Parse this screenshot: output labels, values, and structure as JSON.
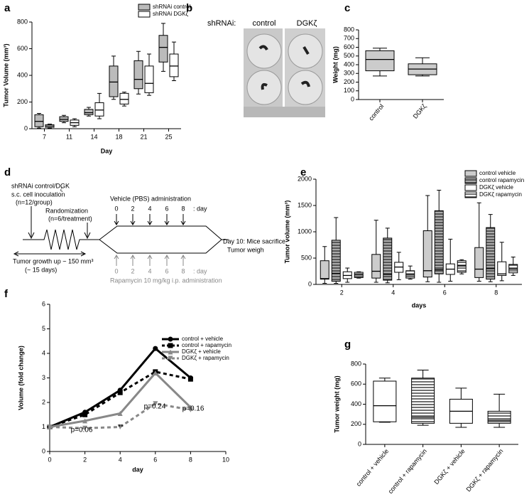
{
  "chart_data": [
    {
      "panel": "a",
      "type": "box",
      "ylabel": "Tumor Volume (mm³)",
      "xlabel": "Day",
      "categories": [
        "7",
        "11",
        "14",
        "18",
        "21",
        "25"
      ],
      "ylim": [
        0,
        800
      ],
      "yticks": [
        0,
        200,
        400,
        600,
        800
      ],
      "legend": "top-right",
      "series": [
        {
          "name": "shRNAi control",
          "color": "#bbbbbb",
          "values": [
            {
              "min": 5,
              "q1": 15,
              "median": 55,
              "q3": 105,
              "max": 115
            },
            {
              "min": 45,
              "q1": 55,
              "median": 70,
              "q3": 90,
              "max": 100
            },
            {
              "min": 95,
              "q1": 105,
              "median": 120,
              "q3": 145,
              "max": 160
            },
            {
              "min": 220,
              "q1": 240,
              "median": 350,
              "q3": 470,
              "max": 545
            },
            {
              "min": 260,
              "q1": 300,
              "median": 370,
              "q3": 510,
              "max": 580
            },
            {
              "min": 430,
              "q1": 500,
              "median": 610,
              "q3": 700,
              "max": 790
            }
          ]
        },
        {
          "name": "shRNAi DGKζ",
          "color": "#ffffff",
          "values": [
            {
              "min": 5,
              "q1": 10,
              "median": 20,
              "q3": 30,
              "max": 35
            },
            {
              "min": 15,
              "q1": 25,
              "median": 45,
              "q3": 65,
              "max": 75
            },
            {
              "min": 75,
              "q1": 95,
              "median": 140,
              "q3": 195,
              "max": 265
            },
            {
              "min": 170,
              "q1": 185,
              "median": 220,
              "q3": 265,
              "max": 275
            },
            {
              "min": 250,
              "q1": 270,
              "median": 340,
              "q3": 470,
              "max": 560
            },
            {
              "min": 360,
              "q1": 390,
              "median": 470,
              "q3": 560,
              "max": 650
            }
          ]
        }
      ]
    },
    {
      "panel": "c",
      "type": "box",
      "ylabel": "Weight (mg)",
      "categories": [
        "control",
        "DGKζ"
      ],
      "ylim": [
        0,
        800
      ],
      "yticks": [
        0,
        100,
        200,
        300,
        400,
        500,
        600,
        700,
        800
      ],
      "color": "#cccccc",
      "values": [
        {
          "min": 270,
          "q1": 330,
          "median": 460,
          "q3": 560,
          "max": 590
        },
        {
          "min": 270,
          "q1": 285,
          "median": 350,
          "q3": 410,
          "max": 480
        }
      ]
    },
    {
      "panel": "e",
      "type": "box",
      "ylabel": "Tumor volume (mm³)",
      "xlabel": "days",
      "categories": [
        "2",
        "4",
        "6",
        "8"
      ],
      "ylim": [
        0,
        2000
      ],
      "yticks": [
        0,
        500,
        1000,
        1500,
        2000
      ],
      "legend": "top-right",
      "series": [
        {
          "name": "control vehicle",
          "color": "#cccccc",
          "pattern": "none",
          "values": [
            {
              "min": 20,
              "q1": 100,
              "median": 110,
              "q3": 450,
              "max": 720
            },
            {
              "min": 40,
              "q1": 120,
              "median": 250,
              "q3": 570,
              "max": 1220
            },
            {
              "min": 50,
              "q1": 140,
              "median": 260,
              "q3": 1020,
              "max": 1690
            },
            {
              "min": 60,
              "q1": 130,
              "median": 290,
              "q3": 700,
              "max": 1550
            }
          ]
        },
        {
          "name": "control rapamycin",
          "color": "#aaaaaa",
          "pattern": "horizontal-stripes",
          "values": [
            {
              "min": 20,
              "q1": 60,
              "median": 210,
              "q3": 840,
              "max": 1270
            },
            {
              "min": 30,
              "q1": 80,
              "median": 190,
              "q3": 880,
              "max": 1070
            },
            {
              "min": 40,
              "q1": 200,
              "median": 280,
              "q3": 1400,
              "max": 1790
            },
            {
              "min": 50,
              "q1": 100,
              "median": 300,
              "q3": 1080,
              "max": 1330
            }
          ]
        },
        {
          "name": "DGKζ vehicle",
          "color": "#ffffff",
          "pattern": "none",
          "values": [
            {
              "min": 40,
              "q1": 110,
              "median": 170,
              "q3": 240,
              "max": 310
            },
            {
              "min": 90,
              "q1": 230,
              "median": 330,
              "q3": 420,
              "max": 610
            },
            {
              "min": 60,
              "q1": 190,
              "median": 290,
              "q3": 390,
              "max": 860
            },
            {
              "min": 70,
              "q1": 170,
              "median": 200,
              "q3": 430,
              "max": 800
            }
          ]
        },
        {
          "name": "DGKζ rapamycin",
          "color": "#ffffff",
          "pattern": "horizontal-stripes",
          "values": [
            {
              "min": 120,
              "q1": 130,
              "median": 180,
              "q3": 230,
              "max": 240
            },
            {
              "min": 100,
              "q1": 120,
              "median": 180,
              "q3": 260,
              "max": 350
            },
            {
              "min": 200,
              "q1": 230,
              "median": 350,
              "q3": 450,
              "max": 470
            },
            {
              "min": 170,
              "q1": 220,
              "median": 290,
              "q3": 380,
              "max": 520
            }
          ]
        }
      ]
    },
    {
      "panel": "f",
      "type": "line",
      "ylabel": "Volume (fold change)",
      "xlabel": "day",
      "x": [
        0,
        2,
        4,
        6,
        8
      ],
      "xlim": [
        0,
        10
      ],
      "xticks": [
        0,
        2,
        4,
        6,
        8,
        10
      ],
      "ylim": [
        0,
        6
      ],
      "yticks": [
        0,
        1,
        2,
        3,
        4,
        5,
        6
      ],
      "legend": "top-right",
      "series": [
        {
          "name": "control + vehicle",
          "color": "#000000",
          "dash": "solid",
          "marker": "circle",
          "values": [
            1,
            1.6,
            2.5,
            4.2,
            3.0
          ]
        },
        {
          "name": "control + rapamycin",
          "color": "#000000",
          "dash": "dotted",
          "marker": "square",
          "values": [
            1,
            1.5,
            2.4,
            3.25,
            2.95
          ]
        },
        {
          "name": "DGKζ + vehicle",
          "color": "#888888",
          "dash": "solid",
          "marker": "triangle-up",
          "values": [
            1,
            1.25,
            1.55,
            3.2,
            1.8
          ]
        },
        {
          "name": "DGKζ + rapamycin",
          "color": "#888888",
          "dash": "dotted",
          "marker": "triangle-down",
          "values": [
            1,
            0.95,
            1.0,
            1.95,
            1.7
          ]
        }
      ],
      "annotations": [
        "p=0.06",
        "**",
        "p=0.24",
        "p=0.16"
      ]
    },
    {
      "panel": "g",
      "type": "box",
      "ylabel": "Tumor weight (mg)",
      "categories": [
        "control + vehicle",
        "control + rapamycin",
        "DGKζ + vehicle",
        "DGKζ + rapamycin"
      ],
      "ylim": [
        0,
        800
      ],
      "yticks": [
        0,
        200,
        400,
        600,
        800
      ],
      "color": "#ffffff",
      "patterns": [
        "none",
        "horizontal-stripes",
        "none",
        "horizontal-stripes"
      ],
      "values": [
        {
          "min": 220,
          "q1": 225,
          "median": 385,
          "q3": 630,
          "max": 660
        },
        {
          "min": 190,
          "q1": 210,
          "median": 270,
          "q3": 660,
          "max": 740
        },
        {
          "min": 170,
          "q1": 210,
          "median": 330,
          "q3": 450,
          "max": 560
        },
        {
          "min": 170,
          "q1": 210,
          "median": 240,
          "q3": 330,
          "max": 500
        }
      ]
    }
  ],
  "photo": {
    "panel": "b",
    "label": "shRNAi:",
    "columns": [
      "control",
      "DGKζ"
    ]
  },
  "diagram": {
    "panel": "d",
    "inoculation": [
      "shRNAi control/DGK",
      "ζ",
      "s.c. cell inoculation",
      "(n=12/group)"
    ],
    "randomization": [
      "Randomization",
      "(n=6/treatment)"
    ],
    "growth": [
      "Tumor growth up  ~ 150 mm³",
      "(~ 15 days)"
    ],
    "vehicle": "Vehicle (PBS) administration",
    "vehicle_days": [
      "0",
      "2",
      "4",
      "6",
      "8",
      ": day"
    ],
    "rapamycin_days": [
      "0",
      "2",
      "4",
      "6",
      "8",
      ": day"
    ],
    "rapamycin": "Rapamycin 10 mg/kg i.p. administration",
    "end": [
      "Day 10:  Mice sacrifice",
      "Tumor weigh"
    ]
  }
}
